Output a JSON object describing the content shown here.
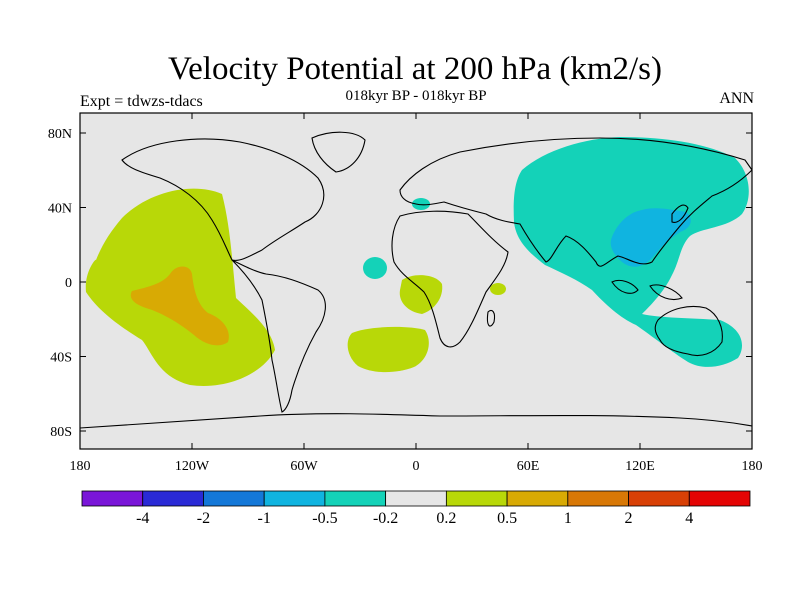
{
  "title": "Velocity Potential at 200 hPa (km2/s)",
  "subtitle": "018kyr BP - 018kyr BP",
  "experiment_label": "Expt = tdwzs-tdacs",
  "season": "ANN",
  "axes": {
    "lon_ticks": [
      "180",
      "120W",
      "60W",
      "0",
      "60E",
      "120E",
      "180"
    ],
    "lat_ticks": [
      "80N",
      "40N",
      "0",
      "40S",
      "80S"
    ]
  },
  "colorbar": {
    "labels": [
      "-4",
      "-2",
      "-1",
      "-0.5",
      "-0.2",
      "0.2",
      "0.5",
      "1",
      "2",
      "4"
    ],
    "colors": [
      "#7a16d8",
      "#2a2ad6",
      "#1478d8",
      "#10b4e0",
      "#14d2b8",
      "#e6e6e6",
      "#b8d808",
      "#d8aa04",
      "#d87806",
      "#d84006",
      "#e40404"
    ]
  },
  "colors": {
    "background": "#e6e6e6",
    "land_outline": "#000000"
  }
}
